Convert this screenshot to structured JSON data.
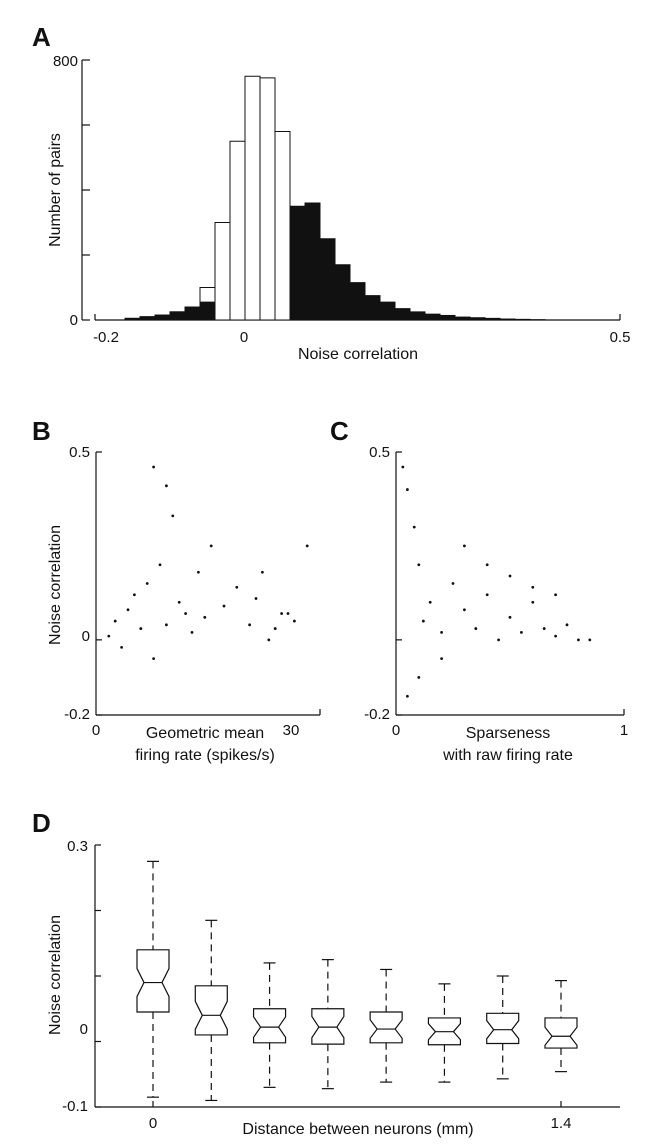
{
  "colors": {
    "ink": "#111111",
    "background": "#ffffff",
    "filled_bar": "#111111",
    "open_bar": "#ffffff"
  },
  "chart_data": [
    {
      "panel": "A",
      "type": "bar",
      "xlabel": "Noise correlation",
      "ylabel": "Number of pairs",
      "xlim": [
        -0.2,
        0.5
      ],
      "ylim": [
        0,
        800
      ],
      "x_ticks": [
        "-0.2",
        "0",
        "0.5"
      ],
      "y_ticks": [
        "0",
        "800"
      ],
      "bin_width": 0.02,
      "bin_starts": [
        -0.16,
        -0.14,
        -0.12,
        -0.1,
        -0.08,
        -0.06,
        -0.04,
        -0.02,
        0.0,
        0.02,
        0.04,
        0.06,
        0.08,
        0.1,
        0.12,
        0.14,
        0.16,
        0.18,
        0.2,
        0.22,
        0.24,
        0.26,
        0.28,
        0.3,
        0.32,
        0.34,
        0.36,
        0.38
      ],
      "series": [
        {
          "style": "open",
          "values": [
            5,
            10,
            15,
            25,
            40,
            100,
            300,
            550,
            750,
            745,
            580,
            0,
            0,
            0,
            0,
            0,
            0,
            0,
            0,
            0,
            0,
            0,
            0,
            0,
            0,
            0,
            0,
            0
          ]
        },
        {
          "style": "filled",
          "values": [
            5,
            10,
            15,
            25,
            40,
            55,
            0,
            0,
            0,
            0,
            0,
            350,
            360,
            250,
            170,
            115,
            75,
            55,
            35,
            25,
            18,
            14,
            9,
            7,
            5,
            3,
            2,
            1
          ]
        }
      ]
    },
    {
      "panel": "B",
      "type": "scatter",
      "xlabel_lines": [
        "Geometric mean",
        "firing rate (spikes/s)"
      ],
      "ylabel": "Noise correlation",
      "xlim": [
        0,
        35
      ],
      "ylim": [
        -0.2,
        0.5
      ],
      "x_ticks": [
        "0",
        "30"
      ],
      "y_ticks": [
        "-0.2",
        "0",
        "0.5"
      ],
      "points": [
        [
          2,
          0.01
        ],
        [
          3,
          0.05
        ],
        [
          4,
          -0.02
        ],
        [
          5,
          0.08
        ],
        [
          6,
          0.12
        ],
        [
          7,
          0.03
        ],
        [
          8,
          0.15
        ],
        [
          9,
          -0.05
        ],
        [
          10,
          0.2
        ],
        [
          11,
          0.04
        ],
        [
          12,
          0.33
        ],
        [
          13,
          0.1
        ],
        [
          14,
          0.07
        ],
        [
          15,
          0.02
        ],
        [
          16,
          0.18
        ],
        [
          17,
          0.06
        ],
        [
          18,
          0.25
        ],
        [
          20,
          0.09
        ],
        [
          22,
          0.14
        ],
        [
          24,
          0.04
        ],
        [
          25,
          0.11
        ],
        [
          27,
          0.0
        ],
        [
          29,
          0.07
        ],
        [
          31,
          0.05
        ],
        [
          33,
          0.25
        ],
        [
          9,
          0.46
        ],
        [
          11,
          0.41
        ],
        [
          26,
          0.18
        ],
        [
          28,
          0.03
        ],
        [
          30,
          0.07
        ]
      ]
    },
    {
      "panel": "C",
      "type": "scatter",
      "xlabel_lines": [
        "Sparseness",
        "with raw firing rate"
      ],
      "ylabel": "",
      "xlim": [
        0,
        1
      ],
      "ylim": [
        -0.2,
        0.5
      ],
      "x_ticks": [
        "0",
        "1"
      ],
      "y_ticks": [
        "-0.2",
        "0.5"
      ],
      "points": [
        [
          0.03,
          0.46
        ],
        [
          0.05,
          0.4
        ],
        [
          0.08,
          0.3
        ],
        [
          0.1,
          0.2
        ],
        [
          0.12,
          0.05
        ],
        [
          0.15,
          0.1
        ],
        [
          0.2,
          0.02
        ],
        [
          0.25,
          0.15
        ],
        [
          0.3,
          0.08
        ],
        [
          0.35,
          0.03
        ],
        [
          0.4,
          0.12
        ],
        [
          0.45,
          0.0
        ],
        [
          0.5,
          0.06
        ],
        [
          0.55,
          0.02
        ],
        [
          0.6,
          0.1
        ],
        [
          0.65,
          0.03
        ],
        [
          0.7,
          0.01
        ],
        [
          0.75,
          0.04
        ],
        [
          0.8,
          0.0
        ],
        [
          0.85,
          0.0
        ],
        [
          0.05,
          -0.15
        ],
        [
          0.1,
          -0.1
        ],
        [
          0.2,
          -0.05
        ],
        [
          0.3,
          0.25
        ],
        [
          0.4,
          0.2
        ],
        [
          0.5,
          0.17
        ],
        [
          0.6,
          0.14
        ],
        [
          0.7,
          0.12
        ]
      ]
    },
    {
      "panel": "D",
      "type": "box",
      "xlabel": "Distance between neurons (mm)",
      "ylabel": "Noise correlation",
      "ylim": [
        -0.1,
        0.3
      ],
      "x_ticks": [
        "0",
        "1.4"
      ],
      "y_ticks": [
        "-0.1",
        "0",
        "0.3"
      ],
      "boxes": [
        {
          "x": 0.0,
          "whisker_low": -0.085,
          "q1": 0.045,
          "median": 0.09,
          "q3": 0.14,
          "whisker_high": 0.275
        },
        {
          "x": 0.2,
          "whisker_low": -0.09,
          "q1": 0.01,
          "median": 0.04,
          "q3": 0.085,
          "whisker_high": 0.185
        },
        {
          "x": 0.4,
          "whisker_low": -0.07,
          "q1": -0.002,
          "median": 0.022,
          "q3": 0.05,
          "whisker_high": 0.12
        },
        {
          "x": 0.6,
          "whisker_low": -0.072,
          "q1": -0.004,
          "median": 0.022,
          "q3": 0.05,
          "whisker_high": 0.125
        },
        {
          "x": 0.8,
          "whisker_low": -0.062,
          "q1": -0.002,
          "median": 0.019,
          "q3": 0.045,
          "whisker_high": 0.11
        },
        {
          "x": 1.0,
          "whisker_low": -0.062,
          "q1": -0.005,
          "median": 0.015,
          "q3": 0.036,
          "whisker_high": 0.088
        },
        {
          "x": 1.2,
          "whisker_low": -0.057,
          "q1": -0.003,
          "median": 0.018,
          "q3": 0.043,
          "whisker_high": 0.1
        },
        {
          "x": 1.4,
          "whisker_low": -0.046,
          "q1": -0.01,
          "median": 0.008,
          "q3": 0.036,
          "whisker_high": 0.093
        }
      ]
    }
  ]
}
